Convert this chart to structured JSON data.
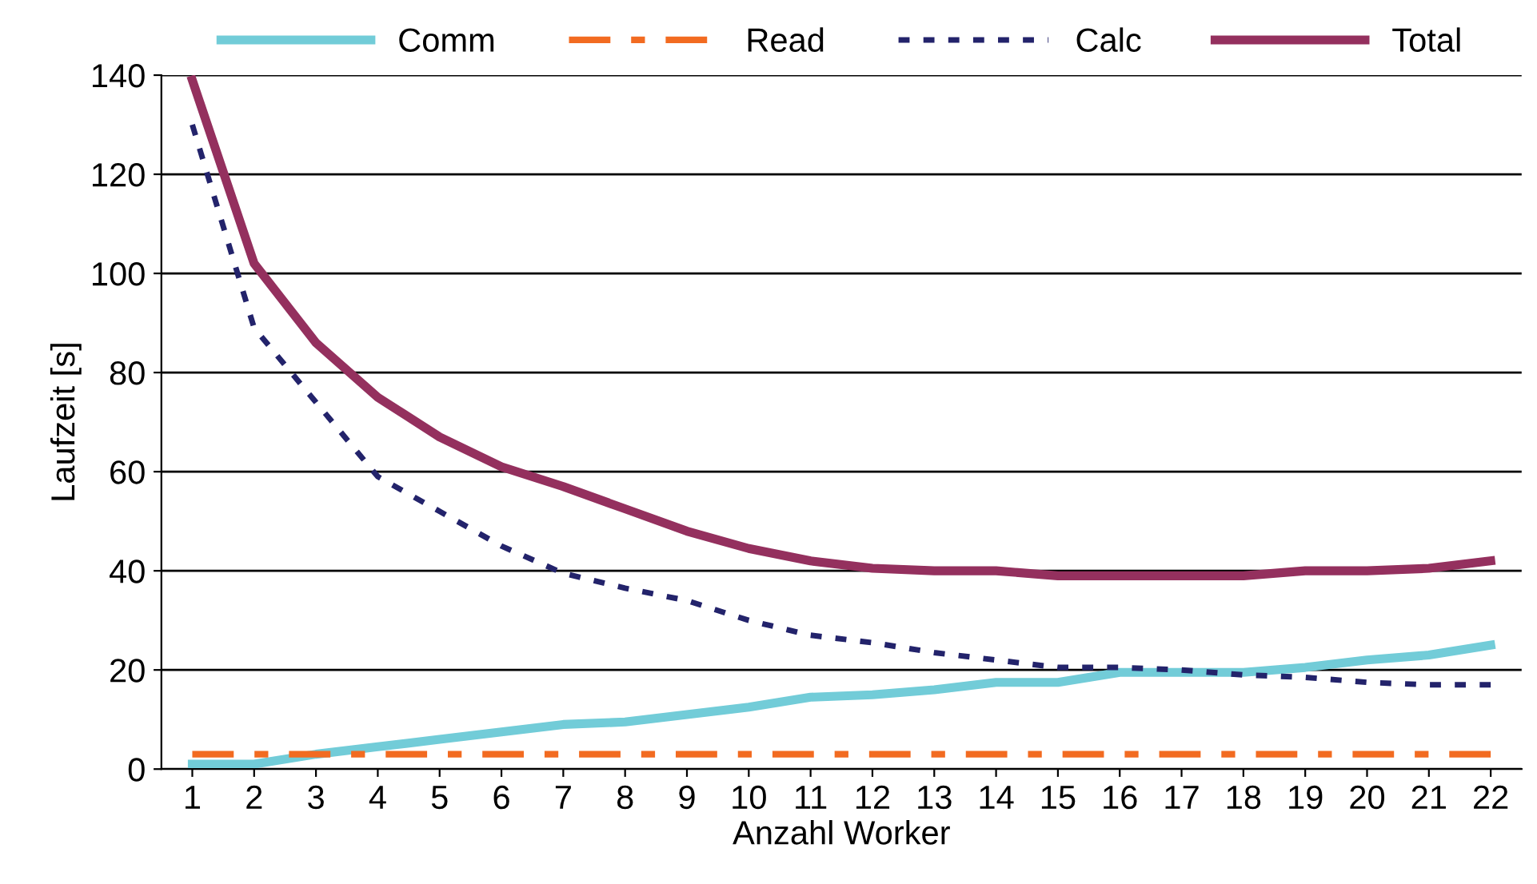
{
  "chart_data": {
    "type": "line",
    "xlabel": "Anzahl Worker",
    "ylabel": "Laufzeit [s]",
    "categories": [
      "1",
      "2",
      "3",
      "4",
      "5",
      "6",
      "7",
      "8",
      "9",
      "10",
      "11",
      "12",
      "13",
      "14",
      "15",
      "16",
      "17",
      "18",
      "19",
      "20",
      "21",
      "22"
    ],
    "ylim": [
      0,
      140
    ],
    "yticks": [
      0,
      20,
      40,
      60,
      80,
      100,
      120,
      140
    ],
    "grid": "y",
    "legend": "top",
    "marker": "none",
    "series": [
      {
        "name": "Comm",
        "color": "#72ccd8",
        "line_style": "solid",
        "values": [
          1,
          1,
          3,
          4.5,
          6,
          7.5,
          9,
          9.5,
          11,
          12.5,
          14.5,
          15,
          16,
          17.5,
          17.5,
          19.5,
          19.5,
          19.5,
          20.5,
          22,
          23,
          25
        ]
      },
      {
        "name": "Read",
        "color": "#f26b21",
        "line_style": "dashed",
        "values": [
          3,
          3,
          3,
          3,
          3,
          3,
          3,
          3,
          3,
          3,
          3,
          3,
          3,
          3,
          3,
          3,
          3,
          3,
          3,
          3,
          3,
          3
        ]
      },
      {
        "name": "Calc",
        "color": "#23236b",
        "line_style": "dotted",
        "values": [
          130,
          89,
          74,
          59,
          52,
          45,
          39.5,
          36.5,
          34,
          30,
          27,
          25.5,
          23.5,
          22,
          20.5,
          20.5,
          20,
          19,
          18.5,
          17.5,
          17,
          17
        ]
      },
      {
        "name": "Total",
        "color": "#94305e",
        "line_style": "solid",
        "values": [
          139,
          102,
          86,
          75,
          67,
          61,
          57,
          52.5,
          48,
          44.5,
          42,
          40.5,
          40,
          40,
          39,
          39,
          39,
          39,
          40,
          40,
          40.5,
          42
        ]
      }
    ]
  }
}
